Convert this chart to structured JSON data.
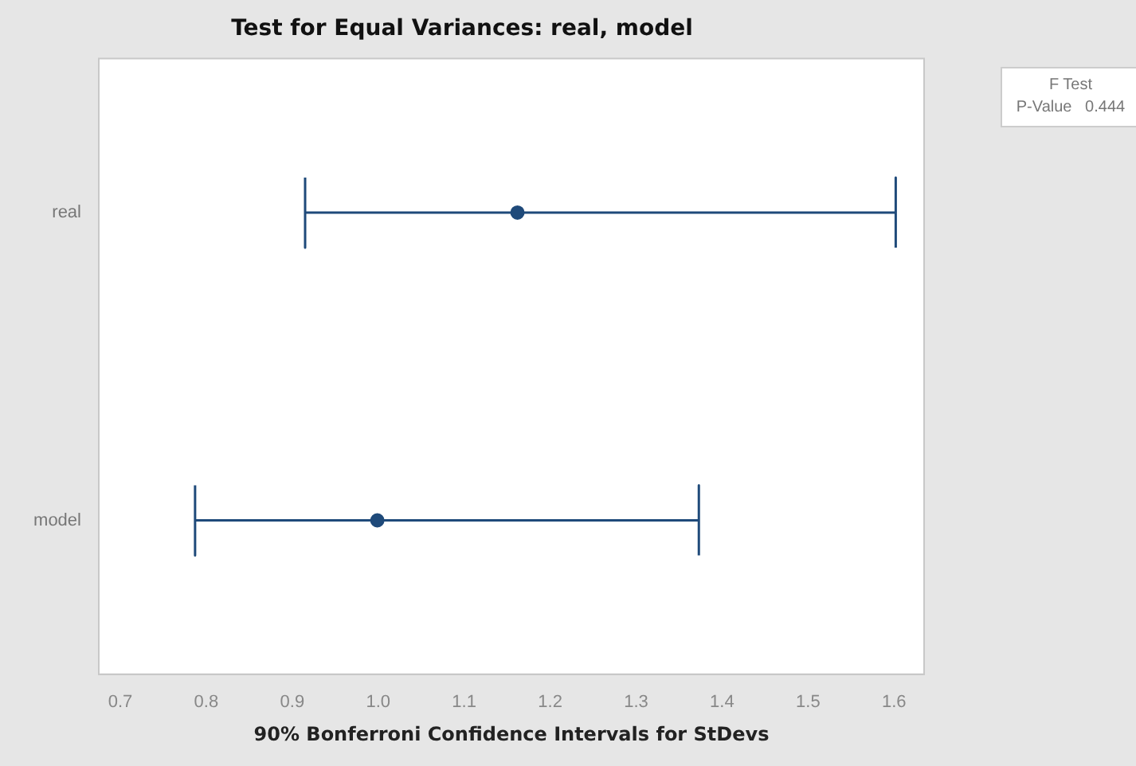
{
  "chart_data": {
    "type": "scatter",
    "orientation": "horizontal",
    "title": "Test for Equal Variances: real, model",
    "xlabel": "90% Bonferroni Confidence Intervals for StDevs",
    "categories": [
      "real",
      "model"
    ],
    "series": [
      {
        "color": "#1f4a7a",
        "values": [
          1.162,
          0.999
        ],
        "errors": [
          [
            0.915,
            1.602
          ],
          [
            0.787,
            1.373
          ]
        ]
      }
    ],
    "xlim": [
      0.675,
      1.635
    ],
    "xticks": [
      0.7,
      0.8,
      0.9,
      {
        "value": 1,
        "label": "1.0"
      },
      1.1,
      1.2,
      1.3,
      1.4,
      1.5,
      1.6
    ],
    "grid": false,
    "legend": false,
    "marker": "circle",
    "annotations": [
      "F Test",
      "P-Value   0.444"
    ]
  }
}
